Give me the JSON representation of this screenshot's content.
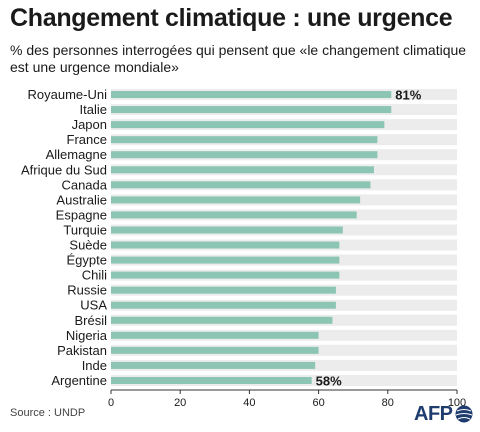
{
  "header": {
    "title": "Changement climatique : une urgence",
    "subtitle": "% des personnes interrogées qui pensent que «le changement climatique est une urgence mondiale»"
  },
  "footer": {
    "source": "Source : UNDP",
    "logo_text": "AFP"
  },
  "colors": {
    "bar": "#8cc5b3",
    "band": "#ececec",
    "axis": "#333333",
    "text": "#1a1a1a",
    "logo": "#1f3c6e"
  },
  "chart_data": {
    "type": "bar",
    "orientation": "horizontal",
    "title": "Changement climatique : une urgence",
    "subtitle": "% des personnes interrogées qui pensent que «le changement climatique est une urgence mondiale»",
    "categories": [
      "Royaume-Uni",
      "Italie",
      "Japon",
      "France",
      "Allemagne",
      "Afrique du Sud",
      "Canada",
      "Australie",
      "Espagne",
      "Turquie",
      "Suède",
      "Égypte",
      "Chili",
      "Russie",
      "USA",
      "Brésil",
      "Nigeria",
      "Pakistan",
      "Inde",
      "Argentine"
    ],
    "values": [
      81,
      81,
      79,
      77,
      77,
      76,
      75,
      72,
      71,
      67,
      66,
      66,
      66,
      65,
      65,
      64,
      60,
      60,
      59,
      58
    ],
    "data_labels": {
      "0": "81%",
      "19": "58%"
    },
    "xlim": [
      0,
      100
    ],
    "xticks": [
      0,
      20,
      40,
      60,
      80,
      100
    ],
    "xlabel": "",
    "ylabel": "",
    "grid": false
  }
}
